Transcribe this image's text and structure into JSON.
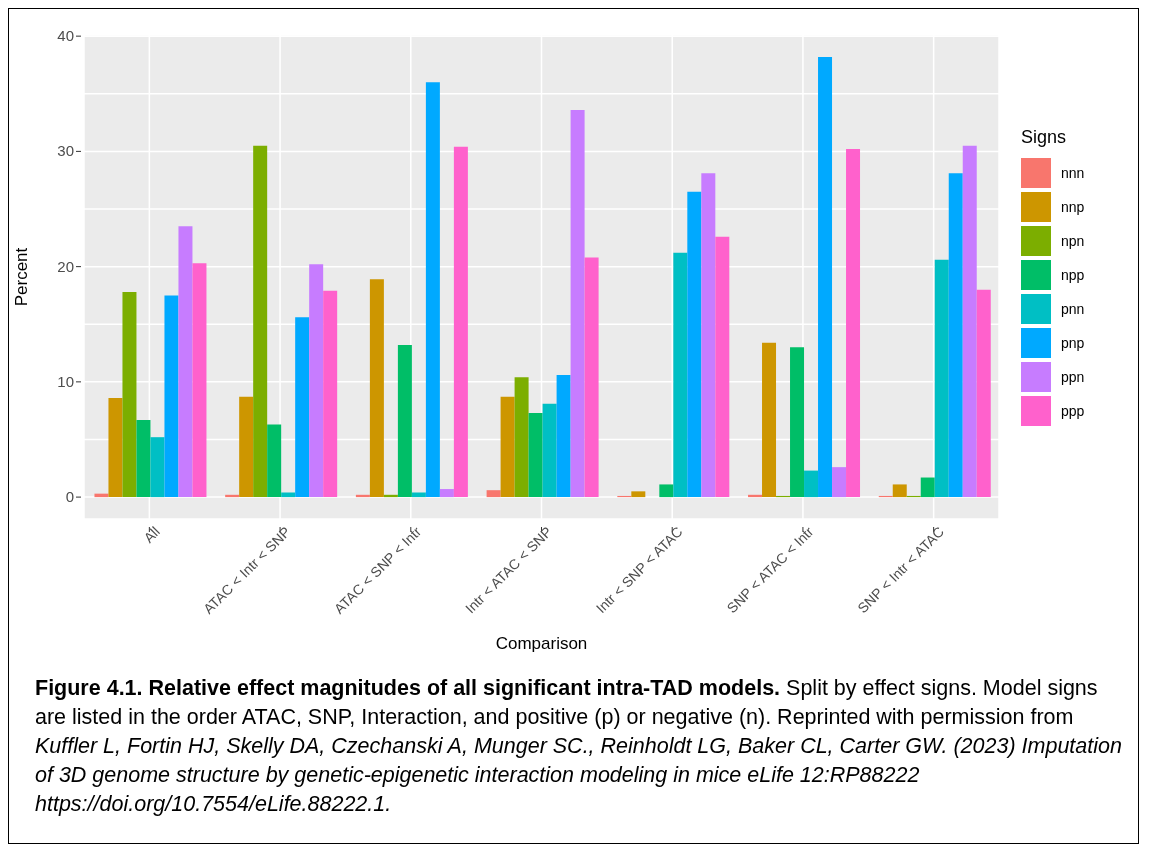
{
  "chart_data": {
    "type": "bar",
    "title": "Figure 4.1. Relative effect magnitudes of all significant intra-TAD models.",
    "xlabel": "Comparison",
    "ylabel": "Percent",
    "legend_title": "Signs",
    "legend": "right",
    "grid": true,
    "categories": [
      "All",
      "ATAC < Intr < SNP",
      "ATAC < SNP < Intr",
      "Intr < ATAC < SNP",
      "Intr < SNP < ATAC",
      "SNP < ATAC < Intr",
      "SNP < Intr < ATAC"
    ],
    "ylim": [
      -1.9,
      40.1
    ],
    "yticks": [
      0,
      {
        "value": 5,
        "label": null
      },
      10,
      {
        "value": 15,
        "label": null
      },
      20,
      {
        "value": 25,
        "label": null
      },
      30,
      {
        "value": 35,
        "label": null
      },
      40
    ],
    "series": [
      {
        "name": "nnn",
        "color": "#f8766d",
        "values": [
          0.3,
          0.2,
          0.2,
          0.6,
          0.1,
          0.2,
          0.1
        ]
      },
      {
        "name": "nnp",
        "color": "#cd9600",
        "values": [
          8.6,
          8.7,
          18.9,
          8.7,
          0.5,
          13.4,
          1.1
        ]
      },
      {
        "name": "npn",
        "color": "#7cae00",
        "values": [
          17.8,
          30.5,
          0.2,
          10.4,
          0,
          0.1,
          0.1
        ]
      },
      {
        "name": "npp",
        "color": "#00be67",
        "values": [
          6.7,
          6.3,
          13.2,
          7.3,
          1.1,
          13.0,
          1.7
        ]
      },
      {
        "name": "pnn",
        "color": "#00bfc4",
        "values": [
          5.2,
          0.4,
          0.4,
          8.1,
          21.2,
          2.3,
          20.6
        ]
      },
      {
        "name": "pnp",
        "color": "#00a9ff",
        "values": [
          17.5,
          15.6,
          36.0,
          10.6,
          26.5,
          38.2,
          28.1
        ]
      },
      {
        "name": "ppn",
        "color": "#c77cff",
        "values": [
          23.5,
          20.2,
          0.7,
          33.6,
          28.1,
          2.6,
          30.5
        ]
      },
      {
        "name": "ppp",
        "color": "#ff61cc",
        "values": [
          20.3,
          17.9,
          30.4,
          20.8,
          22.6,
          30.2,
          18.0
        ]
      }
    ],
    "annotations": [
      "Split by effect signs. Model signs are listed in the order ATAC, SNP, Interaction, and positive (p) or negative (n). Reprinted with permission from",
      "Kuffler L, Fortin HJ, Skelly DA, Czechanski A, Munger SC., Reinholdt LG, Baker CL, Carter GW. (2023) Imputation of 3D genome structure by genetic-epigenetic interaction modeling in mice eLife 12:RP88222 https://doi.org/10.7554/eLife.88222.1."
    ]
  }
}
